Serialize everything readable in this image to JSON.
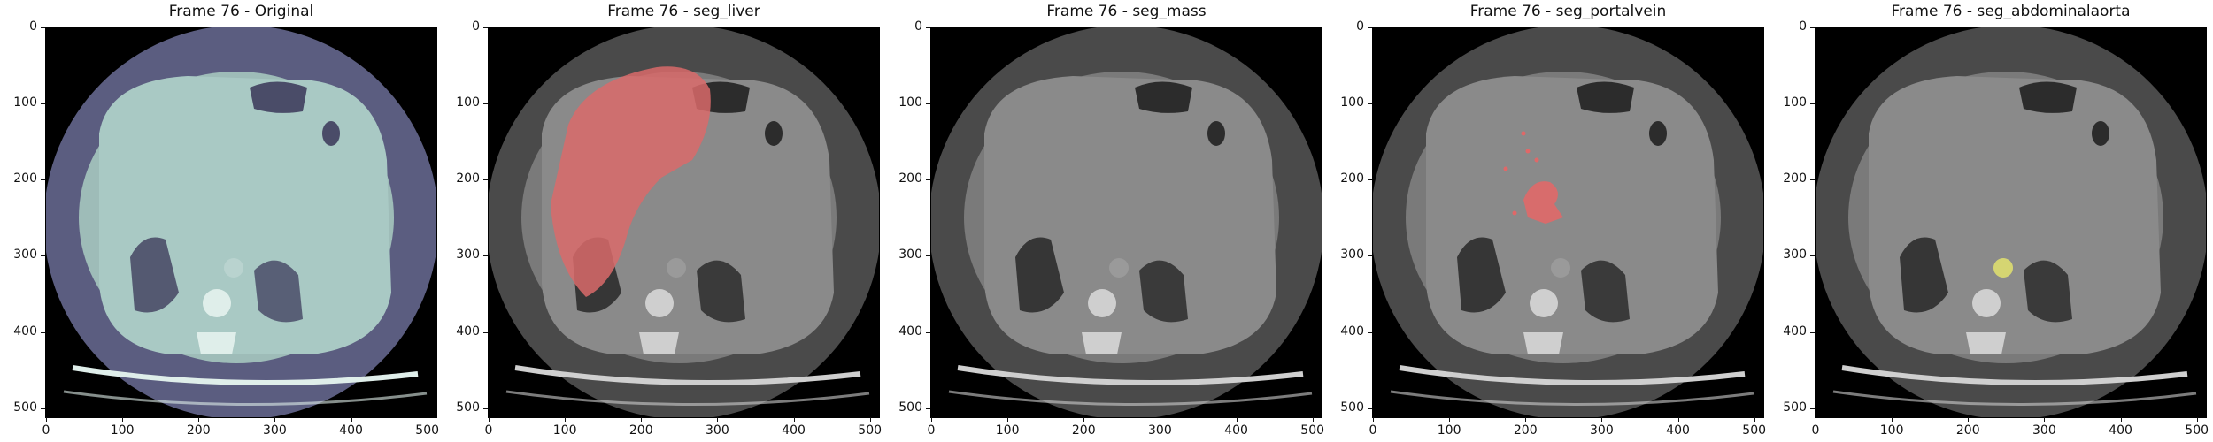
{
  "panels": [
    {
      "title": "Frame 76 - Original",
      "overlay": "none"
    },
    {
      "title": "Frame 76 - seg_liver",
      "overlay": "liver"
    },
    {
      "title": "Frame 76 - seg_mass",
      "overlay": "none"
    },
    {
      "title": "Frame 76 - seg_portalvein",
      "overlay": "portalvein"
    },
    {
      "title": "Frame 76 - seg_abdominalaorta",
      "overlay": "aorta"
    }
  ],
  "axis": {
    "xticks": [
      "0",
      "100",
      "200",
      "300",
      "400",
      "500"
    ],
    "yticks": [
      "0",
      "100",
      "200",
      "300",
      "400",
      "500"
    ],
    "range": [
      0,
      512
    ]
  },
  "colors": {
    "original_tint": "#a9c9c4",
    "original_bg": "#5b5d80",
    "liver_overlay": "#d96a6a",
    "portalvein_overlay": "#e06868",
    "aorta_overlay": "#d8d870"
  }
}
